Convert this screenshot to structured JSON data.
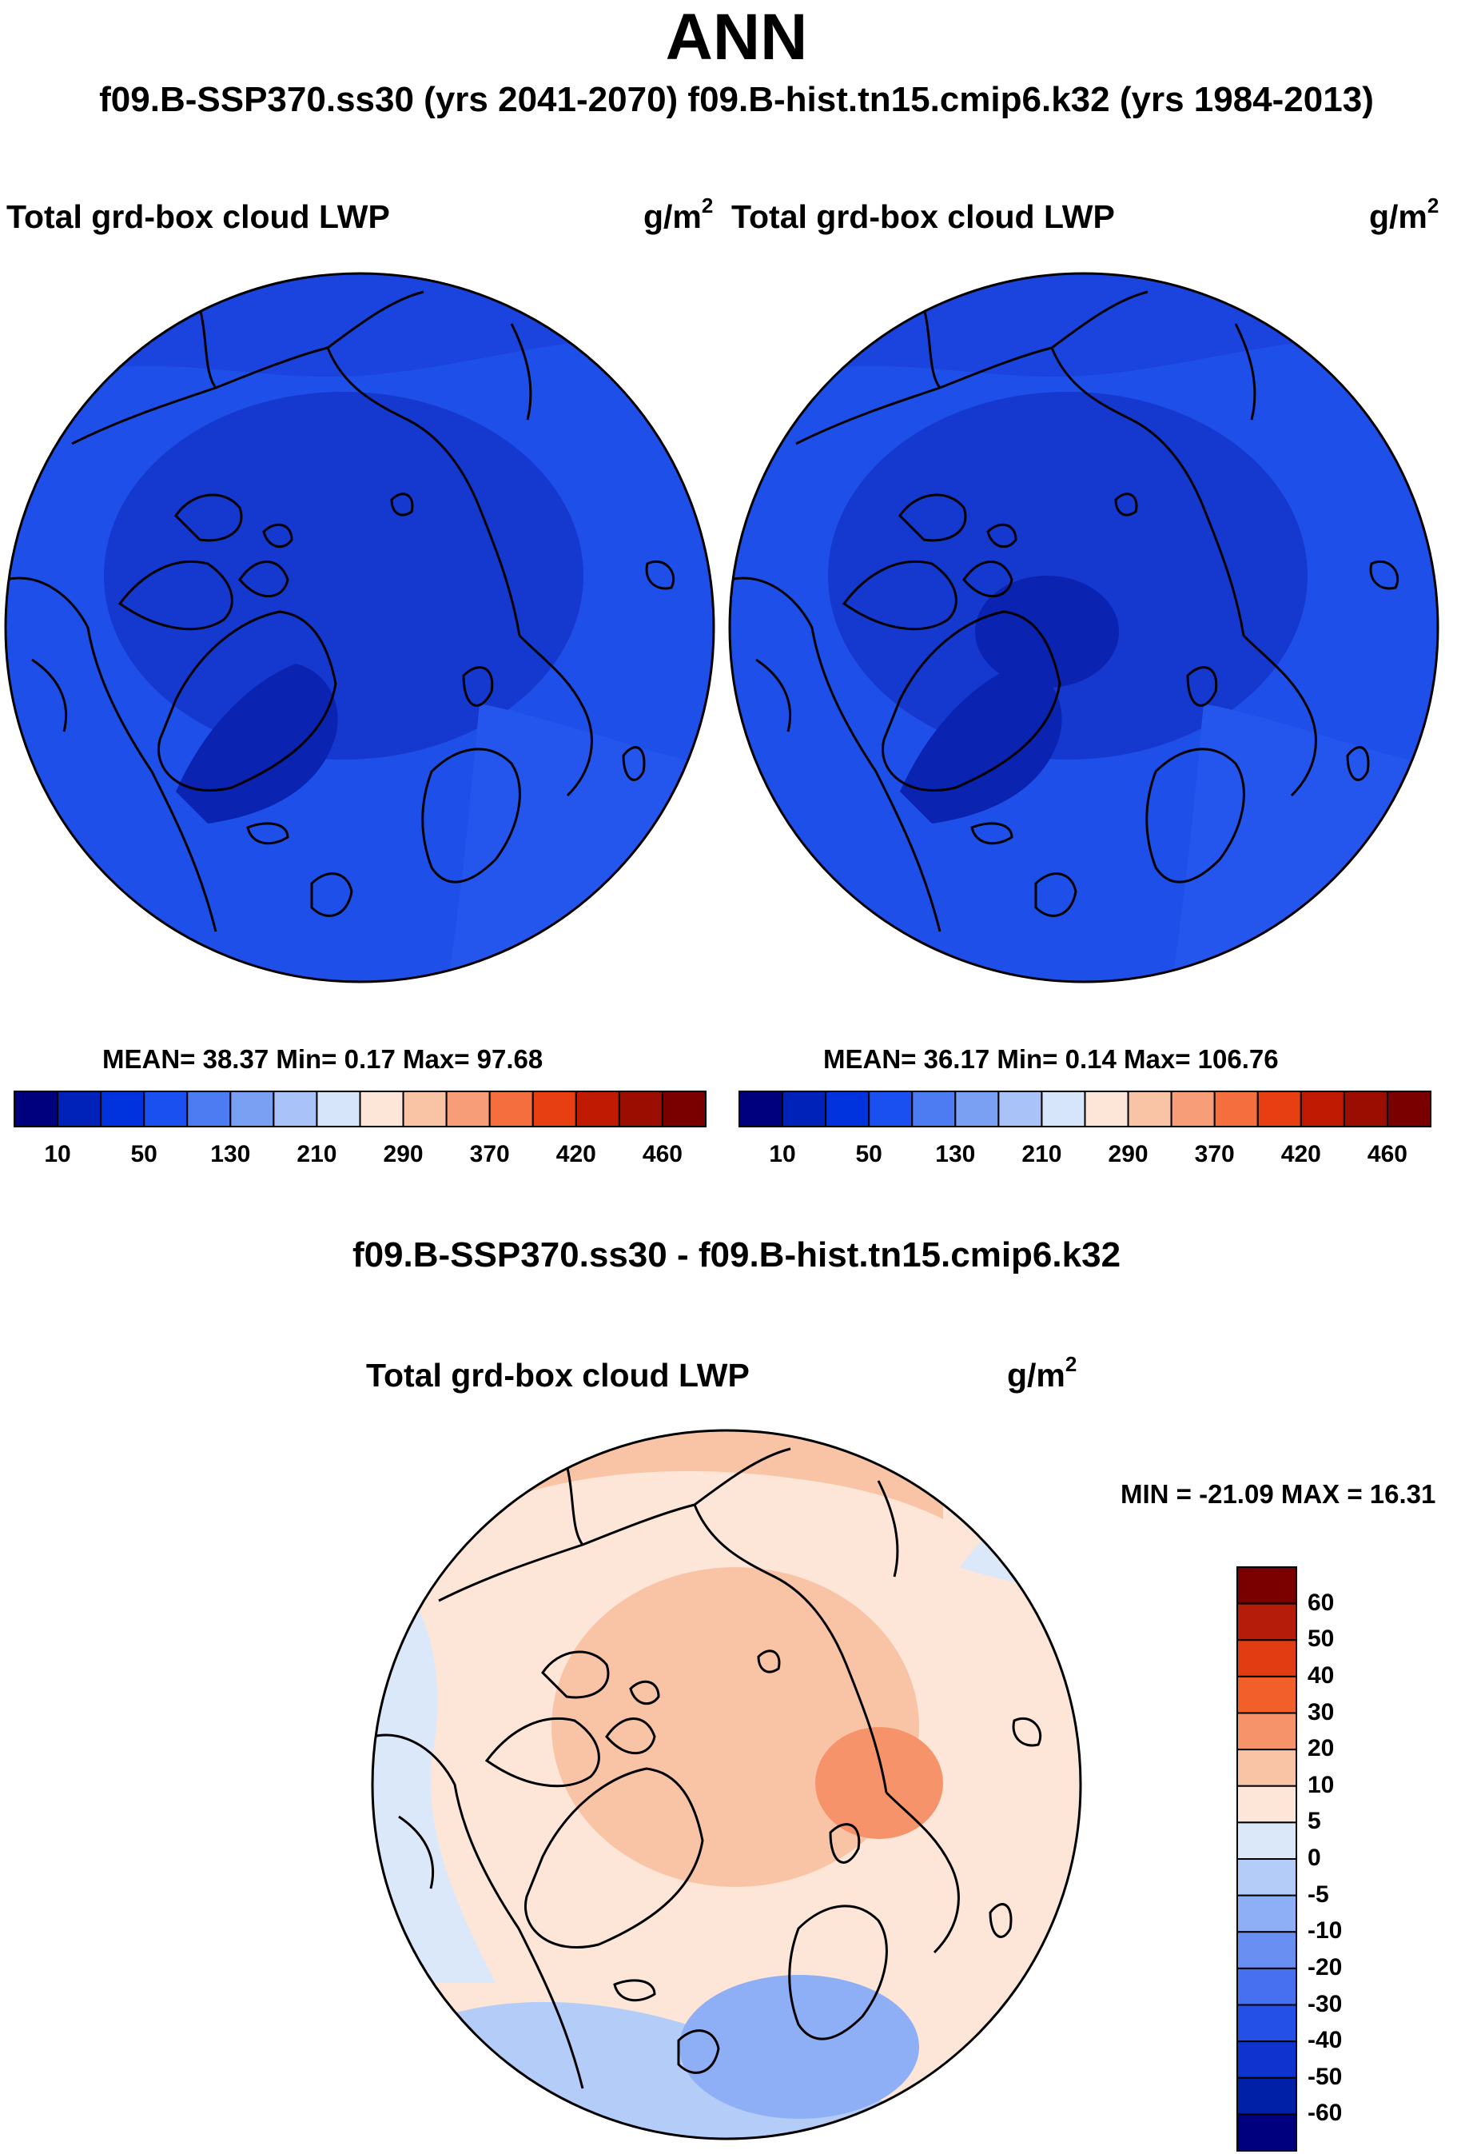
{
  "header": {
    "title": "ANN",
    "subtitle": "f09.B-SSP370.ss30 (yrs 2041-2070)  f09.B-hist.tn15.cmip6.k32 (yrs 1984-2013)"
  },
  "panels": [
    {
      "case": "f09.B-SSP370.ss30 (yrs 2041-2070)",
      "title": "Total grd-box cloud LWP",
      "units_base": "g/m",
      "units_exp": "2",
      "stats": "MEAN=  38.37  Min=   0.17  Max=  97.68",
      "mean": 38.37,
      "min": 0.17,
      "max": 97.68
    },
    {
      "case": "f09.B-hist.tn15.cmip6.k32 (yrs 1984-2013)",
      "title": "Total grd-box cloud LWP",
      "units_base": "g/m",
      "units_exp": "2",
      "stats": "MEAN=  36.17  Min=   0.14  Max= 106.76",
      "mean": 36.17,
      "min": 0.14,
      "max": 106.76
    }
  ],
  "diff": {
    "title": "f09.B-SSP370.ss30 - f09.B-hist.tn15.cmip6.k32",
    "panel_title": "Total grd-box cloud LWP",
    "units_base": "g/m",
    "units_exp": "2",
    "minmax": "MIN = -21.09 MAX =  16.31",
    "min": -21.09,
    "max": 16.31
  },
  "colors": {
    "map_levels": [
      "#00007f",
      "#0022b8",
      "#0033dd",
      "#1a4ff0",
      "#4d7bf2",
      "#7aa0f4",
      "#a9c2f7",
      "#d7e5fa",
      "#fde6d8",
      "#f9c4a6",
      "#f79d77",
      "#f46f3d",
      "#e83f12",
      "#c11a03",
      "#9b0d00",
      "#7a0000"
    ],
    "diff_levels": [
      "#7a0000",
      "#b61c0a",
      "#e23c12",
      "#f25f2a",
      "#f6936b",
      "#f9c4a6",
      "#fde6d8",
      "#dbe8fa",
      "#b3ccf8",
      "#8eaef6",
      "#6a8ff3",
      "#4670ef",
      "#2550e8",
      "#0f33cf",
      "#0020a8",
      "#00007f"
    ]
  },
  "chart_data": [
    {
      "type": "heatmap",
      "projection": "north polar stereographic",
      "title": "Total grd-box cloud LWP",
      "units": "g/m2",
      "colorbar_ticks": [
        "10",
        "50",
        "130",
        "210",
        "290",
        "370",
        "420",
        "460"
      ],
      "mean": 38.37,
      "min": 0.17,
      "max": 97.68
    },
    {
      "type": "heatmap",
      "projection": "north polar stereographic",
      "title": "Total grd-box cloud LWP",
      "units": "g/m2",
      "colorbar_ticks": [
        "10",
        "50",
        "130",
        "210",
        "290",
        "370",
        "420",
        "460"
      ],
      "mean": 36.17,
      "min": 0.14,
      "max": 106.76
    },
    {
      "type": "heatmap",
      "projection": "north polar stereographic",
      "title": "f09.B-SSP370.ss30 - f09.B-hist.tn15.cmip6.k32",
      "units": "g/m2",
      "colorbar_ticks": [
        "60",
        "50",
        "40",
        "30",
        "20",
        "10",
        "5",
        "0",
        "-5",
        "-10",
        "-20",
        "-30",
        "-40",
        "-50",
        "-60"
      ],
      "min": -21.09,
      "max": 16.31
    }
  ]
}
